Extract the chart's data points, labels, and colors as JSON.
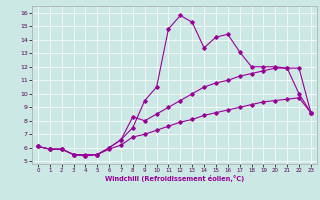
{
  "xlabel": "Windchill (Refroidissement éolien,°C)",
  "background_color": "#cce8e4",
  "line_color": "#990099",
  "xlim": [
    -0.5,
    23.5
  ],
  "ylim": [
    4.8,
    16.5
  ],
  "xticks": [
    0,
    1,
    2,
    3,
    4,
    5,
    6,
    7,
    8,
    9,
    10,
    11,
    12,
    13,
    14,
    15,
    16,
    17,
    18,
    19,
    20,
    21,
    22,
    23
  ],
  "yticks": [
    5,
    6,
    7,
    8,
    9,
    10,
    11,
    12,
    13,
    14,
    15,
    16
  ],
  "series": [
    {
      "x": [
        0,
        1,
        2,
        3,
        4,
        5,
        6,
        7,
        8,
        9,
        10,
        11,
        12,
        13,
        14,
        15,
        16,
        17,
        18,
        19,
        20,
        21,
        22,
        23
      ],
      "y": [
        6.1,
        5.9,
        5.9,
        5.5,
        5.5,
        5.5,
        6.0,
        6.6,
        7.5,
        9.5,
        10.5,
        14.8,
        15.8,
        15.3,
        13.4,
        14.2,
        14.4,
        13.1,
        12.0,
        12.0,
        12.0,
        11.9,
        10.0,
        8.6
      ]
    },
    {
      "x": [
        0,
        1,
        2,
        3,
        4,
        5,
        6,
        7,
        8,
        9,
        10,
        11,
        12,
        13,
        14,
        15,
        16,
        17,
        18,
        19,
        20,
        21,
        22,
        23
      ],
      "y": [
        6.1,
        5.9,
        5.9,
        5.5,
        5.4,
        5.5,
        6.0,
        6.6,
        8.3,
        8.0,
        8.5,
        9.0,
        9.5,
        10.0,
        10.5,
        10.8,
        11.0,
        11.3,
        11.5,
        11.7,
        11.9,
        11.9,
        11.9,
        8.6
      ]
    },
    {
      "x": [
        0,
        1,
        2,
        3,
        4,
        5,
        6,
        7,
        8,
        9,
        10,
        11,
        12,
        13,
        14,
        15,
        16,
        17,
        18,
        19,
        20,
        21,
        22,
        23
      ],
      "y": [
        6.1,
        5.9,
        5.9,
        5.5,
        5.4,
        5.5,
        5.9,
        6.2,
        6.8,
        7.0,
        7.3,
        7.6,
        7.9,
        8.1,
        8.4,
        8.6,
        8.8,
        9.0,
        9.2,
        9.4,
        9.5,
        9.6,
        9.7,
        8.6
      ]
    }
  ]
}
